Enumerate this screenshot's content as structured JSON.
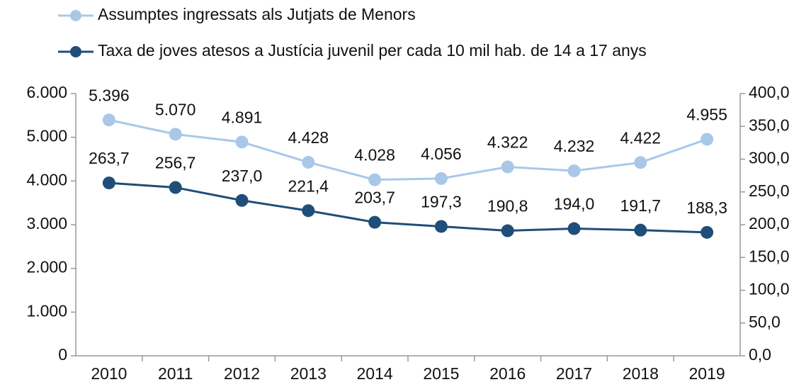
{
  "chart_data": {
    "type": "line",
    "categories": [
      "2010",
      "2011",
      "2012",
      "2013",
      "2014",
      "2015",
      "2016",
      "2017",
      "2018",
      "2019"
    ],
    "series": [
      {
        "name": "Assumptes ingressats als Jutjats de Menors",
        "color": "#a9c8e8",
        "values": [
          5396,
          5070,
          4891,
          4428,
          4028,
          4056,
          4322,
          4232,
          4422,
          4955
        ],
        "value_labels": [
          "5.396",
          "5.070",
          "4.891",
          "4.428",
          "4.028",
          "4.056",
          "4.322",
          "4.232",
          "4.422",
          "4.955"
        ]
      },
      {
        "name": "Taxa de joves atesos a Justícia juvenil per cada 10 mil hab. de 14 a 17 anys",
        "color": "#1f4e79",
        "axis": "y2",
        "values": [
          263.7,
          256.7,
          237.0,
          221.4,
          203.7,
          197.3,
          190.8,
          194.0,
          191.7,
          188.3
        ],
        "value_labels": [
          "263,7",
          "256,7",
          "237,0",
          "221,4",
          "203,7",
          "197,3",
          "190,8",
          "194,0",
          "191,7",
          "188,3"
        ]
      }
    ],
    "ylim": [
      0,
      6000
    ],
    "yticks": [
      {
        "value": 0,
        "label": "0"
      },
      {
        "value": 1000,
        "label": "1.000"
      },
      {
        "value": 2000,
        "label": "2.000"
      },
      {
        "value": 3000,
        "label": "3.000"
      },
      {
        "value": 4000,
        "label": "4.000"
      },
      {
        "value": 5000,
        "label": "5.000"
      },
      {
        "value": 6000,
        "label": "6.000"
      }
    ],
    "y2lim": [
      0,
      400
    ],
    "y2ticks": [
      {
        "value": 0,
        "label": "0,0"
      },
      {
        "value": 50,
        "label": "50,0"
      },
      {
        "value": 100,
        "label": "100,0"
      },
      {
        "value": 150,
        "label": "150,0"
      },
      {
        "value": 200,
        "label": "200,0"
      },
      {
        "value": 250,
        "label": "250,0"
      },
      {
        "value": 300,
        "label": "300,0"
      },
      {
        "value": 350,
        "label": "350,0"
      },
      {
        "value": 400,
        "label": "400,0"
      }
    ],
    "grid": false,
    "legend": "top"
  }
}
